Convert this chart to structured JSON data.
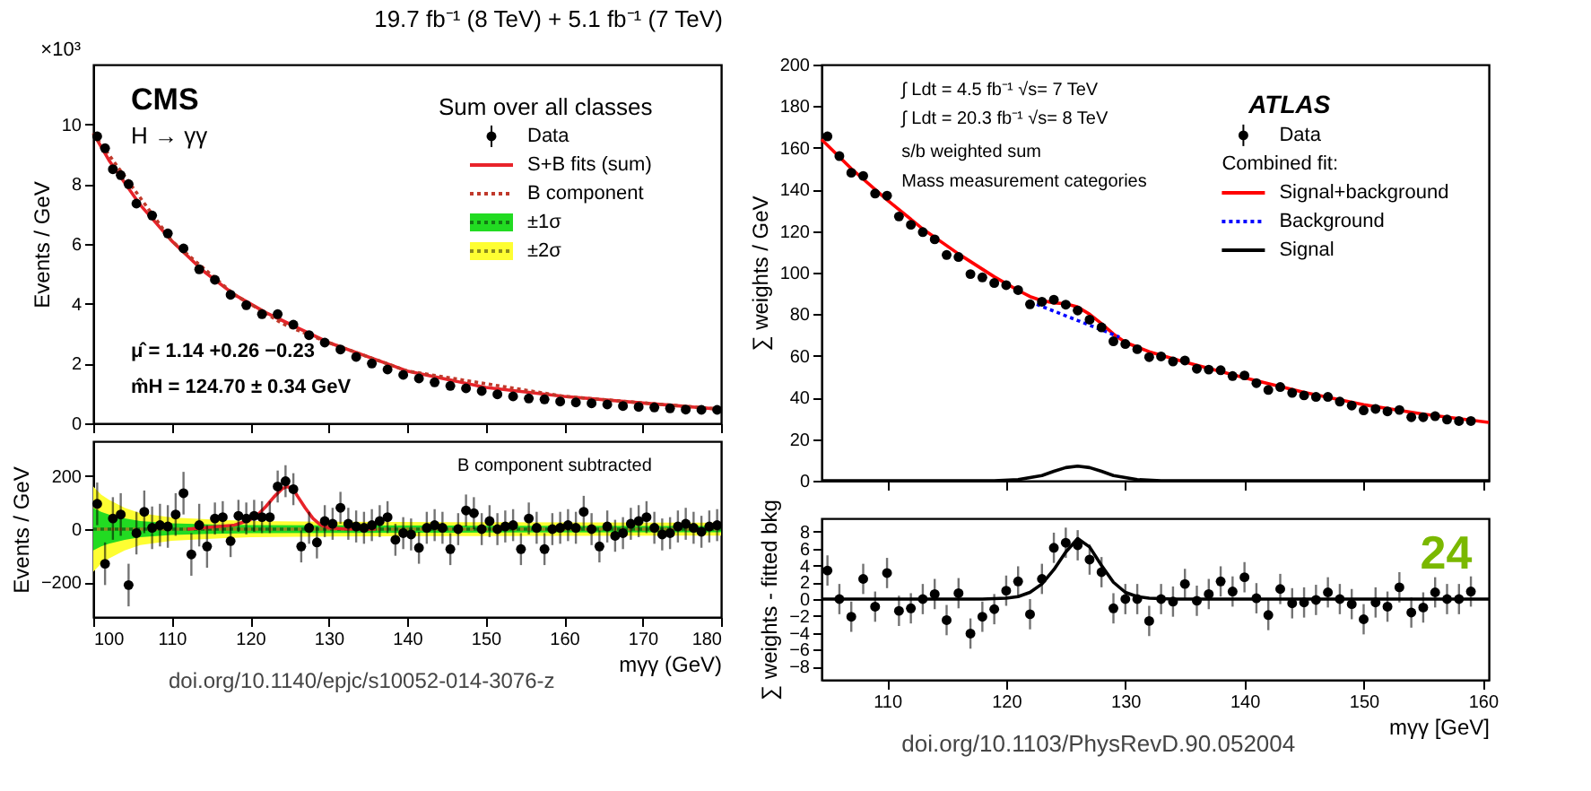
{
  "chart_data": [
    {
      "type": "scatter",
      "title": "19.7 fb⁻¹ (8 TeV) + 5.1 fb⁻¹ (7 TeV)",
      "ylabel": "Events / GeV",
      "xlim": [
        100,
        180
      ],
      "xticks": [
        100,
        110,
        120,
        130,
        140,
        150,
        160,
        170,
        180
      ],
      "ylim": [
        0,
        12
      ],
      "yticks": [
        0,
        2,
        4,
        6,
        8,
        10
      ],
      "grid": false,
      "legend": "top right",
      "tick_labels": "y",
      "annotations": [
        "×10³",
        "CMS",
        "H → γγ",
        "Sum over all classes",
        "μ̂ = 1.14 +0.26 −0.23",
        "m̂H = 124.70 ± 0.34 GeV"
      ],
      "series": [
        {
          "name": "Data",
          "color": "#000000",
          "x": [
            100.5,
            101.5,
            102.5,
            103.5,
            104.5,
            105.5,
            107.5,
            109.5,
            111.5,
            113.5,
            115.5,
            117.5,
            119.5,
            121.5,
            123.5,
            125.5,
            127.5,
            129.5,
            131.5,
            133.5,
            135.5,
            137.5,
            139.5,
            141.5,
            143.5,
            145.5,
            147.5,
            149.5,
            151.5,
            153.5,
            155.5,
            157.5,
            159.5,
            161.5,
            163.5,
            165.5,
            167.5,
            169.5,
            171.5,
            173.5,
            175.5,
            177.5,
            179.5
          ],
          "values": [
            9.6,
            9.2,
            8.5,
            8.3,
            8.0,
            7.35,
            6.95,
            6.35,
            5.85,
            5.15,
            4.8,
            4.3,
            3.95,
            3.65,
            3.65,
            3.3,
            2.95,
            2.7,
            2.47,
            2.22,
            2.0,
            1.8,
            1.62,
            1.5,
            1.37,
            1.25,
            1.17,
            1.08,
            0.97,
            0.9,
            0.83,
            0.8,
            0.73,
            0.7,
            0.67,
            0.63,
            0.58,
            0.55,
            0.53,
            0.5,
            0.46,
            0.45,
            0.45
          ]
        },
        {
          "name": "S+B fits (sum)",
          "type": "line",
          "color": "#e8232a",
          "line_style": "solid",
          "x": [
            100,
            102,
            104,
            106,
            108,
            110,
            114,
            118,
            122,
            124,
            126,
            130,
            140,
            150,
            160,
            170,
            180
          ],
          "values": [
            9.7,
            8.8,
            8.05,
            7.3,
            6.7,
            6.1,
            5.1,
            4.3,
            3.7,
            3.45,
            3.2,
            2.7,
            1.75,
            1.2,
            0.9,
            0.68,
            0.47
          ]
        },
        {
          "name": "B component",
          "type": "line",
          "color": "#c0392b",
          "line_style": "dotted",
          "x": [
            100,
            110,
            118,
            122,
            124,
            126,
            130,
            140,
            160,
            180
          ],
          "values": [
            9.7,
            6.1,
            4.3,
            3.68,
            3.35,
            3.12,
            2.7,
            1.75,
            0.9,
            0.47
          ]
        }
      ]
    },
    {
      "type": "scatter",
      "ylabel": "Events / GeV",
      "xlabel": "mγγ (GeV)",
      "xlim": [
        100,
        180
      ],
      "xticks": [
        100,
        110,
        120,
        130,
        140,
        150,
        160,
        170,
        180
      ],
      "ylim": [
        -330,
        330
      ],
      "yticks": [
        -200,
        0,
        200
      ],
      "grid": false,
      "legend": "top right",
      "annotations": [
        "B component subtracted",
        "doi.org/10.1140/epjc/s10052-014-3076-z"
      ],
      "series": [
        {
          "name": "±1σ",
          "type": "line",
          "color": "#137913",
          "line_style": "dotted",
          "x": [
            100,
            101,
            102,
            104,
            106,
            110,
            115,
            120,
            130,
            150,
            180
          ],
          "values": [
            0,
            0,
            0,
            0,
            0,
            0,
            0,
            0,
            0,
            0,
            0
          ],
          "lower": [
            -80,
            -65,
            -55,
            -40,
            -30,
            -22,
            -18,
            -15,
            -14,
            -13,
            -12
          ],
          "upper": [
            80,
            65,
            55,
            40,
            30,
            22,
            18,
            15,
            14,
            13,
            12
          ]
        },
        {
          "name": "±2σ",
          "type": "line",
          "color": "#8c8c1c",
          "line_style": "dotted",
          "x": [
            100,
            101,
            102,
            104,
            106,
            110,
            115,
            120,
            130,
            150,
            180
          ],
          "values": [
            0,
            0,
            0,
            0,
            0,
            0,
            0,
            0,
            0,
            0,
            0
          ],
          "lower": [
            -160,
            -130,
            -110,
            -80,
            -60,
            -44,
            -36,
            -30,
            -28,
            -26,
            -24
          ],
          "upper": [
            160,
            130,
            110,
            80,
            60,
            44,
            36,
            30,
            28,
            26,
            24
          ]
        },
        {
          "type": "line",
          "color": "#e8232a",
          "line_style": "solid",
          "x": [
            112,
            118,
            120,
            121,
            122,
            123,
            124,
            124.7,
            125.5,
            126,
            127,
            128,
            129,
            130,
            132,
            136
          ],
          "values": [
            0,
            15,
            35,
            55,
            85,
            120,
            150,
            160,
            150,
            125,
            80,
            40,
            15,
            5,
            1,
            0
          ]
        },
        {
          "color": "#000000",
          "x": [
            100.5,
            101.5,
            102.5,
            103.5,
            104.5,
            105.5,
            106.5,
            107.5,
            108.5,
            109.5,
            110.5,
            111.5,
            112.5,
            113.5,
            114.5,
            115.5,
            116.5,
            117.5,
            118.5,
            119.5,
            120.5,
            121.5,
            122.5,
            123.5,
            124.5,
            125.5,
            126.5,
            127.5,
            128.5,
            129.5,
            130.5,
            131.5,
            132.5,
            133.5,
            134.5,
            135.5,
            136.5,
            137.5,
            138.5,
            139.5,
            140.5,
            141.5,
            142.5,
            143.5,
            144.5,
            145.5,
            146.5,
            147.5,
            148.5,
            149.5,
            150.5,
            151.5,
            152.5,
            153.5,
            154.5,
            155.5,
            156.5,
            157.5,
            158.5,
            159.5,
            160.5,
            161.5,
            162.5,
            163.5,
            164.5,
            165.5,
            166.5,
            167.5,
            168.5,
            169.5,
            170.5,
            171.5,
            172.5,
            173.5,
            174.5,
            175.5,
            176.5,
            177.5,
            178.5,
            179.5
          ],
          "values": [
            95,
            -130,
            40,
            55,
            -210,
            -15,
            65,
            5,
            15,
            10,
            55,
            135,
            -95,
            15,
            -65,
            40,
            45,
            -45,
            50,
            40,
            50,
            45,
            45,
            160,
            180,
            150,
            -65,
            5,
            -50,
            30,
            20,
            80,
            20,
            10,
            5,
            15,
            30,
            45,
            -40,
            -15,
            -20,
            -70,
            5,
            15,
            5,
            -75,
            0,
            70,
            60,
            0,
            30,
            0,
            10,
            15,
            -75,
            40,
            5,
            -75,
            0,
            5,
            15,
            5,
            65,
            0,
            -65,
            10,
            -25,
            -15,
            20,
            30,
            45,
            5,
            -20,
            -15,
            10,
            20,
            5,
            -10,
            10,
            15
          ],
          "errors": [
            80,
            80,
            80,
            80,
            80,
            80,
            80,
            80,
            80,
            80,
            80,
            80,
            80,
            80,
            80,
            60,
            60,
            60,
            60,
            60,
            60,
            60,
            60,
            60,
            60,
            60,
            60,
            60,
            60,
            60,
            60,
            60,
            60,
            60,
            60,
            60,
            60,
            60,
            60,
            60,
            60,
            60,
            60,
            60,
            60,
            60,
            60,
            60,
            60,
            60,
            60,
            60,
            60,
            60,
            60,
            60,
            60,
            60,
            60,
            60,
            60,
            60,
            60,
            60,
            60,
            60,
            60,
            60,
            60,
            60,
            60,
            60,
            60,
            60,
            60,
            60,
            60,
            60,
            60,
            60
          ]
        }
      ]
    },
    {
      "type": "scatter",
      "ylabel": "∑ weights / GeV",
      "xlim": [
        104.5,
        160.5
      ],
      "xticks": [
        110,
        120,
        130,
        140,
        150,
        160
      ],
      "ylim": [
        0,
        200
      ],
      "yticks": [
        0,
        20,
        40,
        60,
        80,
        100,
        120,
        140,
        160,
        180,
        200
      ],
      "grid": false,
      "legend": "top right",
      "tick_labels": "y",
      "legend_title": "Combined fit:",
      "annotations": [
        "∫ Ldt = 4.5 fb⁻¹ √s= 7 TeV",
        "∫ Ldt = 20.3 fb⁻¹ √s= 8 TeV",
        "s/b weighted sum",
        "Mass measurement categories",
        "ATLAS"
      ],
      "series": [
        {
          "name": "Data",
          "color": "#000000",
          "x": [
            105,
            106,
            107,
            108,
            109,
            110,
            111,
            112,
            113,
            114,
            115,
            116,
            117,
            118,
            119,
            120,
            121,
            122,
            123,
            124,
            125,
            126,
            127,
            128,
            129,
            130,
            131,
            132,
            133,
            134,
            135,
            136,
            137,
            138,
            139,
            140,
            141,
            142,
            143,
            144,
            145,
            146,
            147,
            148,
            149,
            150,
            151,
            152,
            153,
            154,
            155,
            156,
            157,
            158,
            159
          ],
          "values": [
            165.5,
            156,
            148,
            146.5,
            138,
            137,
            127,
            123,
            119.5,
            116,
            108.5,
            107.5,
            99.3,
            97.7,
            95,
            94,
            91.6,
            84.8,
            86,
            87,
            84.6,
            81.8,
            77.4,
            73.7,
            67,
            65.7,
            63.2,
            59.4,
            59.7,
            57.3,
            57.8,
            53.8,
            53.4,
            53.1,
            50.3,
            50.6,
            46.9,
            43.6,
            45,
            42.2,
            41,
            40.3,
            40.3,
            38,
            36.1,
            33.8,
            34.5,
            33.3,
            34,
            30.5,
            30.5,
            31,
            29.4,
            28.7,
            28.7
          ]
        },
        {
          "name": "Signal+background",
          "type": "line",
          "color": "#ff0000",
          "line_style": "solid",
          "x": [
            104.5,
            107,
            110,
            113,
            116,
            119,
            121,
            122,
            123,
            124,
            125,
            126,
            127,
            128,
            129,
            130,
            132,
            135,
            140,
            145,
            150,
            155,
            160.5
          ],
          "values": [
            164,
            150,
            135,
            121,
            109,
            98,
            91.5,
            88.5,
            86.5,
            85.5,
            85,
            83.5,
            80,
            75.5,
            70.5,
            66.5,
            62,
            57,
            49.5,
            42.5,
            36.5,
            32,
            28
          ]
        },
        {
          "name": "Background",
          "type": "line",
          "color": "#0000ff",
          "line_style": "dotted",
          "x": [
            122,
            124,
            126,
            128,
            129.5
          ],
          "values": [
            86,
            81.5,
            77,
            72.5,
            69
          ]
        },
        {
          "name": "Signal",
          "type": "line",
          "color": "#000000",
          "line_style": "solid",
          "x": [
            104.5,
            119,
            121,
            123,
            124,
            125,
            126,
            127,
            128,
            129,
            131,
            133,
            160.5
          ],
          "values": [
            0,
            0,
            0.5,
            2.5,
            4.5,
            6.3,
            7,
            6.3,
            4.5,
            2.5,
            0.5,
            0,
            0
          ]
        }
      ]
    },
    {
      "type": "scatter",
      "ylabel": "∑ weights - fitted bkg",
      "xlabel": "mγγ [GeV]",
      "xlim": [
        104.5,
        160.5
      ],
      "xticks": [
        110,
        120,
        130,
        140,
        150,
        160
      ],
      "ylim": [
        -9.6,
        9.6
      ],
      "yticks": [
        -8,
        -6,
        -4,
        -2,
        0,
        2,
        4,
        6,
        8
      ],
      "grid": false,
      "annotations": [
        "doi.org/10.1103/PhysRevD.90.052004",
        "24"
      ],
      "series": [
        {
          "type": "line",
          "color": "#000000",
          "line_style": "solid",
          "x": [
            104.5,
            118,
            120,
            121,
            122,
            123,
            124,
            125,
            126,
            127,
            128,
            129,
            130,
            131,
            132,
            134,
            160.5
          ],
          "values": [
            0,
            0,
            0.1,
            0.3,
            0.8,
            1.8,
            3.5,
            5.6,
            7.2,
            6.2,
            4,
            2,
            0.8,
            0.3,
            0.1,
            0,
            0
          ]
        },
        {
          "color": "#000000",
          "x": [
            105,
            106,
            107,
            108,
            109,
            110,
            111,
            112,
            113,
            114,
            115,
            116,
            117,
            118,
            119,
            120,
            121,
            122,
            123,
            124,
            125,
            126,
            127,
            128,
            129,
            130,
            131,
            132,
            133,
            134,
            135,
            136,
            137,
            138,
            139,
            140,
            141,
            142,
            143,
            144,
            145,
            146,
            147,
            148,
            149,
            150,
            151,
            152,
            153,
            154,
            155,
            156,
            157,
            158,
            159
          ],
          "values": [
            3.4,
            0,
            -2.1,
            2.4,
            -0.9,
            3.1,
            -1.4,
            -1.1,
            0,
            0.6,
            -2.5,
            0.7,
            -4.1,
            -2.1,
            -1.2,
            1,
            2.1,
            -1.8,
            2.4,
            6.1,
            6.7,
            6.4,
            4.7,
            3.2,
            -1.1,
            0,
            0,
            -2.6,
            0,
            -0.3,
            1.8,
            -0.2,
            0.6,
            2.1,
            0.9,
            2.6,
            0.1,
            -1.9,
            1.2,
            -0.5,
            -0.4,
            -0.1,
            0.8,
            0,
            -0.6,
            -2.4,
            -0.4,
            -0.9,
            1.4,
            -1.6,
            -1,
            0.8,
            0,
            0,
            0.9
          ],
          "errors": [
            1.8,
            1.8,
            1.8,
            1.8,
            1.8,
            1.8,
            1.8,
            1.8,
            1.8,
            1.8,
            1.8,
            1.8,
            1.8,
            1.8,
            1.8,
            1.8,
            1.8,
            1.8,
            1.8,
            1.8,
            1.8,
            1.8,
            1.8,
            1.8,
            1.8,
            1.8,
            1.8,
            1.8,
            1.8,
            1.8,
            1.8,
            1.8,
            1.8,
            1.8,
            1.8,
            1.8,
            1.8,
            1.8,
            1.8,
            1.8,
            1.8,
            1.8,
            1.8,
            1.8,
            1.8,
            1.8,
            1.8,
            1.8,
            1.8,
            1.8,
            1.8,
            1.8,
            1.8,
            1.8,
            1.8
          ]
        }
      ]
    }
  ]
}
